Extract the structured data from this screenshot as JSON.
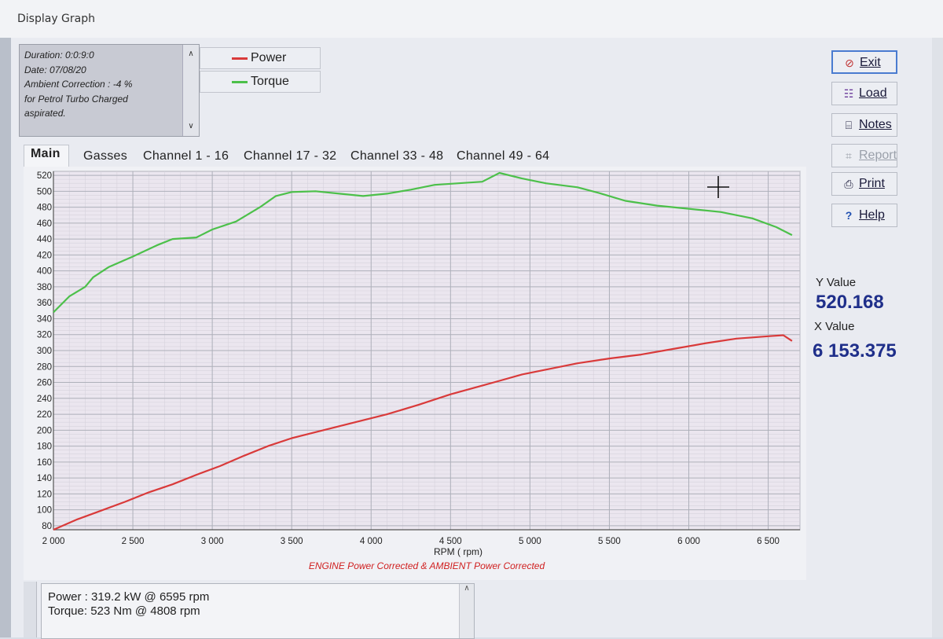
{
  "window": {
    "title": "Display Graph"
  },
  "info": {
    "lines": [
      "Duration: 0:0:9:0",
      "Date: 07/08/20",
      "Ambient Correction : -4 %",
      " for Petrol Turbo Charged",
      "aspirated."
    ]
  },
  "legend": {
    "items": [
      {
        "label": "Power",
        "color": "#d93a3a"
      },
      {
        "label": "Torque",
        "color": "#4cc04a"
      }
    ]
  },
  "tabs": [
    {
      "label": "Main",
      "active": true
    },
    {
      "label": "Gasses"
    },
    {
      "label": "Channel 1 - 16"
    },
    {
      "label": "Channel 17 - 32"
    },
    {
      "label": "Channel 33 - 48"
    },
    {
      "label": "Channel 49 - 64"
    }
  ],
  "buttons": {
    "exit": {
      "label": "Exit",
      "icon": "exit-icon"
    },
    "load": {
      "label": "Load",
      "icon": "graph-load-icon"
    },
    "notes": {
      "label": "Notes",
      "icon": "notes-icon"
    },
    "report": {
      "label": "Report",
      "icon": "report-icon",
      "disabled": true
    },
    "print": {
      "label": "Print",
      "icon": "printer-icon"
    },
    "help": {
      "label": "Help",
      "icon": "help-icon"
    }
  },
  "readout": {
    "y_label": "Y Value",
    "y_value": "520.168",
    "x_label": "X Value",
    "x_value": "6 153.375"
  },
  "summary": {
    "line1": "Power : 319.2 kW @ 6595 rpm",
    "line2": "Torque: 523 Nm @ 4808 rpm"
  },
  "chart_data": {
    "type": "line",
    "xlabel": "RPM ( rpm)",
    "subtitle": "ENGINE Power Corrected & AMBIENT Power Corrected",
    "xlim": [
      2000,
      6700
    ],
    "ylim": [
      75,
      525
    ],
    "x_ticks": [
      2000,
      2500,
      3000,
      3500,
      4000,
      4500,
      5000,
      5500,
      6000,
      6500
    ],
    "x_tick_labels": [
      "2 000",
      "2 500",
      "3 000",
      "3 500",
      "4 000",
      "4 500",
      "5 000",
      "5 500",
      "6 000",
      "6 500"
    ],
    "y_ticks": [
      80,
      100,
      120,
      140,
      160,
      180,
      200,
      220,
      240,
      260,
      280,
      300,
      320,
      340,
      360,
      380,
      400,
      420,
      440,
      460,
      480,
      500,
      520
    ],
    "grid": true,
    "series": [
      {
        "name": "Torque",
        "color": "#4cc04a",
        "points": [
          [
            2000,
            348
          ],
          [
            2100,
            368
          ],
          [
            2200,
            380
          ],
          [
            2250,
            392
          ],
          [
            2350,
            405
          ],
          [
            2500,
            418
          ],
          [
            2650,
            432
          ],
          [
            2750,
            440
          ],
          [
            2900,
            442
          ],
          [
            3000,
            452
          ],
          [
            3150,
            462
          ],
          [
            3300,
            480
          ],
          [
            3400,
            494
          ],
          [
            3500,
            499
          ],
          [
            3650,
            500
          ],
          [
            3800,
            497
          ],
          [
            3950,
            494
          ],
          [
            4100,
            497
          ],
          [
            4250,
            502
          ],
          [
            4400,
            508
          ],
          [
            4550,
            510
          ],
          [
            4700,
            512
          ],
          [
            4808,
            523
          ],
          [
            4950,
            516
          ],
          [
            5100,
            510
          ],
          [
            5300,
            505
          ],
          [
            5450,
            497
          ],
          [
            5600,
            488
          ],
          [
            5800,
            482
          ],
          [
            6000,
            478
          ],
          [
            6200,
            474
          ],
          [
            6400,
            466
          ],
          [
            6550,
            455
          ],
          [
            6650,
            445
          ]
        ]
      },
      {
        "name": "Power",
        "color": "#d93a3a",
        "points": [
          [
            2000,
            75
          ],
          [
            2150,
            88
          ],
          [
            2300,
            99
          ],
          [
            2450,
            110
          ],
          [
            2600,
            122
          ],
          [
            2750,
            132
          ],
          [
            2900,
            144
          ],
          [
            3050,
            155
          ],
          [
            3200,
            168
          ],
          [
            3350,
            180
          ],
          [
            3500,
            190
          ],
          [
            3700,
            200
          ],
          [
            3900,
            210
          ],
          [
            4100,
            220
          ],
          [
            4300,
            232
          ],
          [
            4500,
            245
          ],
          [
            4700,
            256
          ],
          [
            4808,
            262
          ],
          [
            4950,
            270
          ],
          [
            5100,
            276
          ],
          [
            5300,
            284
          ],
          [
            5500,
            290
          ],
          [
            5700,
            295
          ],
          [
            5900,
            302
          ],
          [
            6100,
            309
          ],
          [
            6300,
            315
          ],
          [
            6500,
            318
          ],
          [
            6595,
            319.2
          ],
          [
            6650,
            312
          ]
        ]
      }
    ]
  }
}
